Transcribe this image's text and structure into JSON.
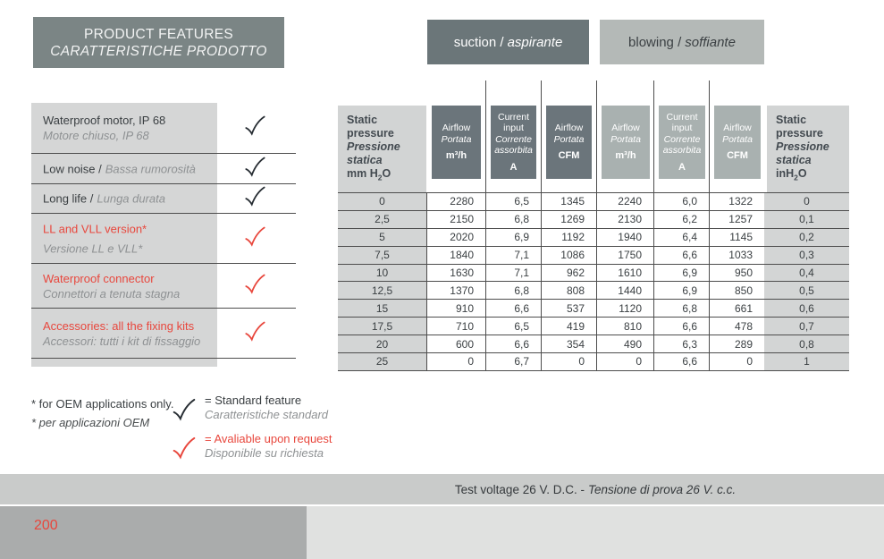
{
  "colors": {
    "accent_red": "#e8473d",
    "slate_header": "#7b8585",
    "suction_box": "#6b7679",
    "blowing_box": "#b4b9b7",
    "header_dark": "#6b757b",
    "header_light": "#a9b1b0",
    "panel_gray": "#d5d6d6"
  },
  "features": {
    "header": {
      "en": "PRODUCT FEATURES",
      "it": "CARATTERISTICHE PRODOTTO"
    },
    "items": [
      {
        "en": "Waterproof motor, IP 68",
        "it": "Motore chiuso, IP 68",
        "availability": "standard"
      },
      {
        "en": "Low noise /",
        "it": "Bassa rumorosità",
        "availability": "standard"
      },
      {
        "en": "Long life /",
        "it": "Lunga durata",
        "availability": "standard"
      },
      {
        "en": "LL and VLL version*",
        "it": "Versione LL e VLL*",
        "availability": "on-request"
      },
      {
        "en": "Waterproof connector",
        "it": "Connettori a tenuta stagna",
        "availability": "on-request"
      },
      {
        "en": "Accessories: all the fixing kits",
        "it": "Accessori: tutti i kit di fissaggio",
        "availability": "on-request"
      }
    ],
    "footnote": {
      "en": "* for OEM applications only.",
      "it": "* per applicazioni OEM"
    },
    "legend": {
      "standard": {
        "label": "= Standard feature",
        "sub": "Caratteristiche standard"
      },
      "request": {
        "label": "= Avaliable upon request",
        "sub": "Disponibile su richiesta"
      }
    }
  },
  "table": {
    "sections": {
      "suction_en": "suction /",
      "suction_it": "aspirante",
      "blowing_en": "blowing /",
      "blowing_it": "soffiante"
    },
    "headers": {
      "static_left": {
        "en1": "Static",
        "en2": "pressure",
        "it1": "Pressione",
        "it2": "statica",
        "unit_pre": "mm H",
        "unit_sub": "2",
        "unit_post": "O"
      },
      "airflow_m": {
        "en": "Airflow",
        "it": "Portata",
        "unit": "m³/h"
      },
      "current": {
        "en1": "Current",
        "en2": "input",
        "it1": "Corrente",
        "it2": "assorbita",
        "unit": "A"
      },
      "airflow_cfm": {
        "en": "Airflow",
        "it": "Portata",
        "unit": "CFM"
      },
      "static_right": {
        "en1": "Static",
        "en2": "pressure",
        "it1": "Pressione",
        "it2": "statica",
        "unit_pre": "inH",
        "unit_sub": "2",
        "unit_post": "O"
      }
    },
    "rows": [
      [
        "0",
        "2280",
        "6,5",
        "1345",
        "2240",
        "6,0",
        "1322",
        "0"
      ],
      [
        "2,5",
        "2150",
        "6,8",
        "1269",
        "2130",
        "6,2",
        "1257",
        "0,1"
      ],
      [
        "5",
        "2020",
        "6,9",
        "1192",
        "1940",
        "6,4",
        "1145",
        "0,2"
      ],
      [
        "7,5",
        "1840",
        "7,1",
        "1086",
        "1750",
        "6,6",
        "1033",
        "0,3"
      ],
      [
        "10",
        "1630",
        "7,1",
        "962",
        "1610",
        "6,9",
        "950",
        "0,4"
      ],
      [
        "12,5",
        "1370",
        "6,8",
        "808",
        "1440",
        "6,9",
        "850",
        "0,5"
      ],
      [
        "15",
        "910",
        "6,6",
        "537",
        "1120",
        "6,8",
        "661",
        "0,6"
      ],
      [
        "17,5",
        "710",
        "6,5",
        "419",
        "810",
        "6,6",
        "478",
        "0,7"
      ],
      [
        "20",
        "600",
        "6,6",
        "354",
        "490",
        "6,3",
        "289",
        "0,8"
      ],
      [
        "25",
        "0",
        "6,7",
        "0",
        "0",
        "6,6",
        "0",
        "1"
      ]
    ]
  },
  "footer": {
    "test_voltage_en": "Test voltage 26 V. D.C. -",
    "test_voltage_it": "Tensione di prova 26 V. c.c.",
    "page_number": "200"
  }
}
